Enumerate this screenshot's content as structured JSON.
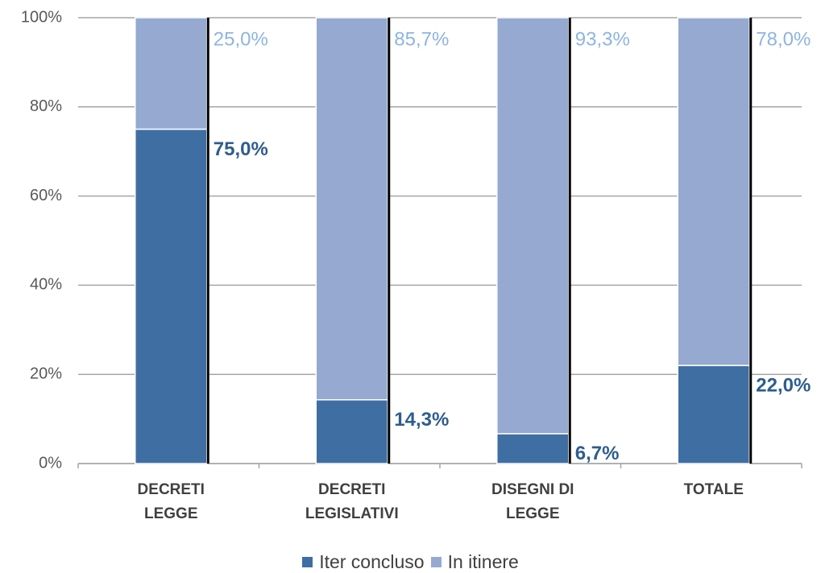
{
  "chart_data": {
    "type": "stacked_bar",
    "categories": [
      "DECRETI LEGGE",
      "DECRETI LEGISLATIVI",
      "DISEGNI DI LEGGE",
      "TOTALE"
    ],
    "series": [
      {
        "name": "Iter concluso",
        "color": "#3f6ea3",
        "values": [
          75.0,
          14.3,
          6.7,
          22.0
        ],
        "value_labels": [
          "75,0%",
          "14,3%",
          "6,7%",
          "22,0%"
        ],
        "label_color": "#2f5c8f"
      },
      {
        "name": "In itinere",
        "color": "#95a9d1",
        "values": [
          25.0,
          85.7,
          93.3,
          78.0
        ],
        "value_labels": [
          "25,0%",
          "85,7%",
          "93,3%",
          "78,0%"
        ],
        "label_color": "#8eb4e3"
      }
    ],
    "ylim": [
      0,
      100
    ],
    "yticks": [
      {
        "value": 0,
        "label": "0%"
      },
      {
        "value": 20,
        "label": "20%"
      },
      {
        "value": 40,
        "label": "40%"
      },
      {
        "value": 60,
        "label": "60%"
      },
      {
        "value": 80,
        "label": "80%"
      },
      {
        "value": 100,
        "label": "100%"
      }
    ],
    "grid": true,
    "legend": "bottom"
  }
}
